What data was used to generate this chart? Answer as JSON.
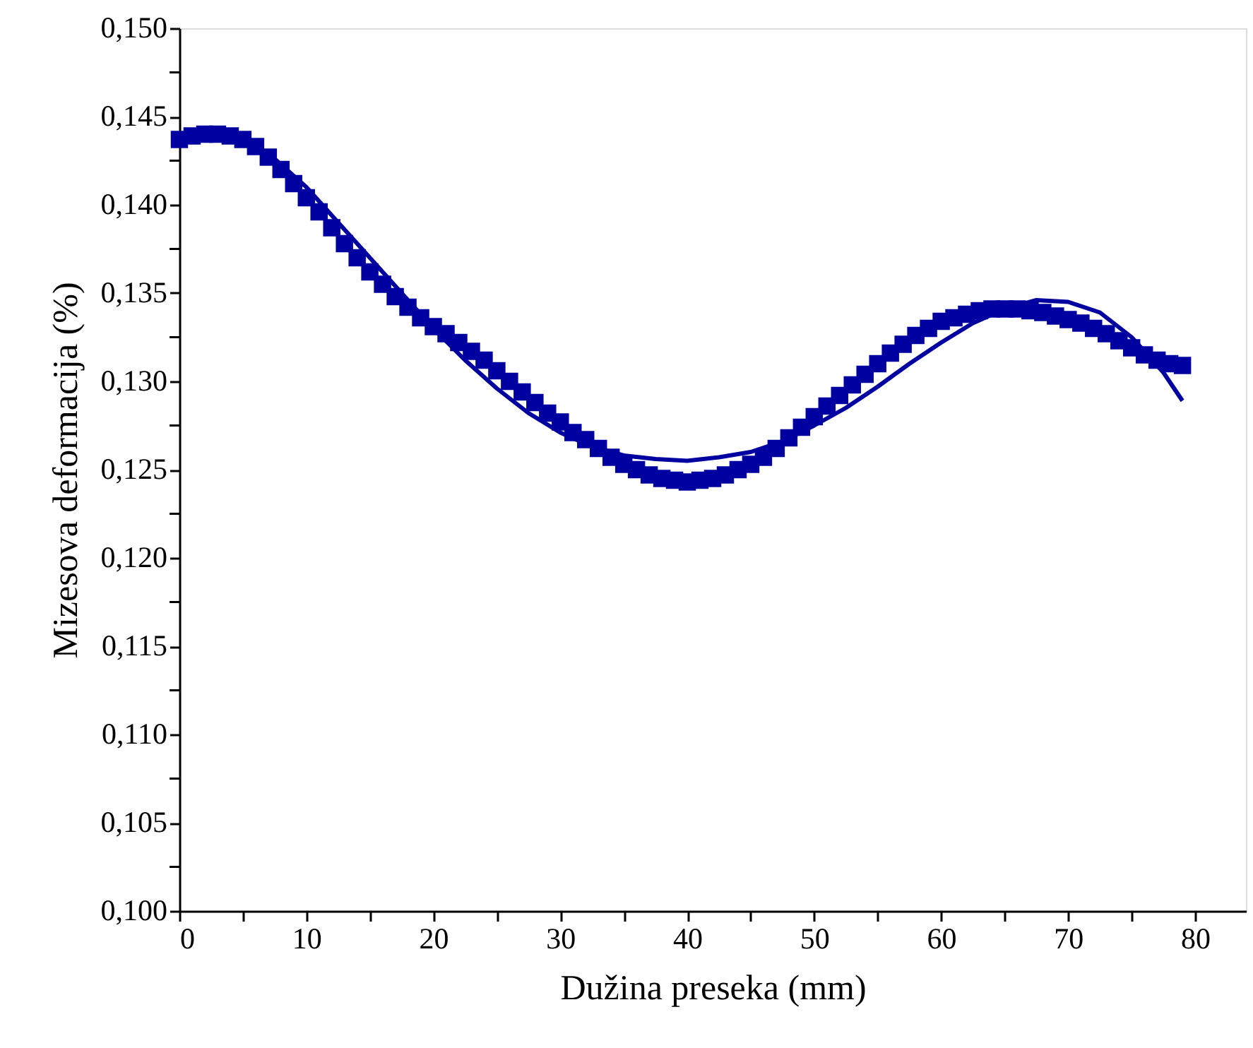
{
  "chart_data": {
    "type": "scatter",
    "xlabel": "Dužina preseka (mm)",
    "ylabel": "Mizesova deformacija (%)",
    "xlim": [
      0,
      84
    ],
    "ylim": [
      0.1,
      0.15
    ],
    "xticks": [
      0,
      {
        "value": 5,
        "label": null
      },
      10,
      {
        "value": 15,
        "label": null
      },
      20,
      {
        "value": 25,
        "label": null
      },
      30,
      {
        "value": 35,
        "label": null
      },
      40,
      {
        "value": 45,
        "label": null
      },
      50,
      {
        "value": 55,
        "label": null
      },
      60,
      {
        "value": 65,
        "label": null
      },
      70,
      {
        "value": 75,
        "label": null
      },
      80
    ],
    "yticks": [
      {
        "value": 0.1,
        "label": "0,100"
      },
      {
        "value": 0.1025,
        "label": null
      },
      {
        "value": 0.105,
        "label": "0,105"
      },
      {
        "value": 0.1075,
        "label": null
      },
      {
        "value": 0.11,
        "label": "0,110"
      },
      {
        "value": 0.1125,
        "label": null
      },
      {
        "value": 0.115,
        "label": "0,115"
      },
      {
        "value": 0.1175,
        "label": null
      },
      {
        "value": 0.12,
        "label": "0,120"
      },
      {
        "value": 0.1225,
        "label": null
      },
      {
        "value": 0.125,
        "label": "0,125"
      },
      {
        "value": 0.1275,
        "label": null
      },
      {
        "value": 0.13,
        "label": "0,130"
      },
      {
        "value": 0.1325,
        "label": null
      },
      {
        "value": 0.135,
        "label": "0,135"
      },
      {
        "value": 0.1375,
        "label": null
      },
      {
        "value": 0.14,
        "label": "0,140"
      },
      {
        "value": 0.1425,
        "label": null
      },
      {
        "value": 0.145,
        "label": "0,145"
      },
      {
        "value": 0.1475,
        "label": null
      },
      {
        "value": 0.15,
        "label": "0,150"
      }
    ],
    "grid": false,
    "series": [
      {
        "marker": "square",
        "color": "#0000a0",
        "x": [
          0,
          1,
          2,
          3,
          4,
          5,
          6,
          7,
          8,
          9,
          10,
          11,
          12,
          13,
          14,
          15,
          16,
          17,
          18,
          19,
          20,
          21,
          22,
          23,
          24,
          25,
          26,
          27,
          28,
          29,
          30,
          31,
          32,
          33,
          34,
          35,
          36,
          37,
          38,
          39,
          40,
          41,
          42,
          43,
          44,
          45,
          46,
          47,
          48,
          49,
          50,
          51,
          52,
          53,
          54,
          55,
          56,
          57,
          58,
          59,
          60,
          61,
          62,
          63,
          64,
          65,
          66,
          67,
          68,
          69,
          70,
          71,
          72,
          73,
          74,
          75,
          76,
          77,
          78,
          79
        ],
        "values": [
          0.1437,
          0.1439,
          0.144,
          0.144,
          0.1439,
          0.1437,
          0.1433,
          0.1427,
          0.142,
          0.1412,
          0.1404,
          0.1396,
          0.1387,
          0.1378,
          0.137,
          0.1362,
          0.1355,
          0.1348,
          0.1342,
          0.1336,
          0.1331,
          0.1327,
          0.1322,
          0.1317,
          0.1312,
          0.1306,
          0.13,
          0.1294,
          0.1288,
          0.1282,
          0.1277,
          0.1271,
          0.1267,
          0.1262,
          0.1257,
          0.1253,
          0.125,
          0.1247,
          0.1245,
          0.1244,
          0.1243,
          0.1244,
          0.1245,
          0.1247,
          0.125,
          0.1253,
          0.1257,
          0.1262,
          0.1268,
          0.1274,
          0.128,
          0.1286,
          0.1292,
          0.1298,
          0.1304,
          0.131,
          0.1316,
          0.1321,
          0.1326,
          0.133,
          0.1334,
          0.1336,
          0.1338,
          0.134,
          0.1341,
          0.1341,
          0.1341,
          0.134,
          0.1339,
          0.1337,
          0.1335,
          0.1333,
          0.133,
          0.1327,
          0.1323,
          0.1319,
          0.1315,
          0.1312,
          0.131,
          0.1309
        ]
      },
      {
        "type": "line",
        "marker": "none",
        "line_style": "solid",
        "color": "#0000a0",
        "x": [
          0,
          2.5,
          5,
          7.5,
          10,
          12.5,
          15,
          17.5,
          20,
          22.5,
          25,
          27.5,
          30,
          32.5,
          35,
          37.5,
          40,
          42.5,
          45,
          47.5,
          50,
          52.5,
          55,
          57.5,
          60,
          62.5,
          65,
          67.5,
          70,
          72.5,
          75,
          77.5,
          79
        ],
        "values": [
          0.1435,
          0.144,
          0.1438,
          0.1426,
          0.141,
          0.139,
          0.137,
          0.135,
          0.133,
          0.1312,
          0.1296,
          0.1282,
          0.1271,
          0.1263,
          0.1258,
          0.1256,
          0.1255,
          0.1257,
          0.126,
          0.1266,
          0.1275,
          0.1285,
          0.1297,
          0.131,
          0.1322,
          0.1333,
          0.1341,
          0.1346,
          0.1345,
          0.1339,
          0.1325,
          0.1305,
          0.1289
        ]
      }
    ]
  }
}
